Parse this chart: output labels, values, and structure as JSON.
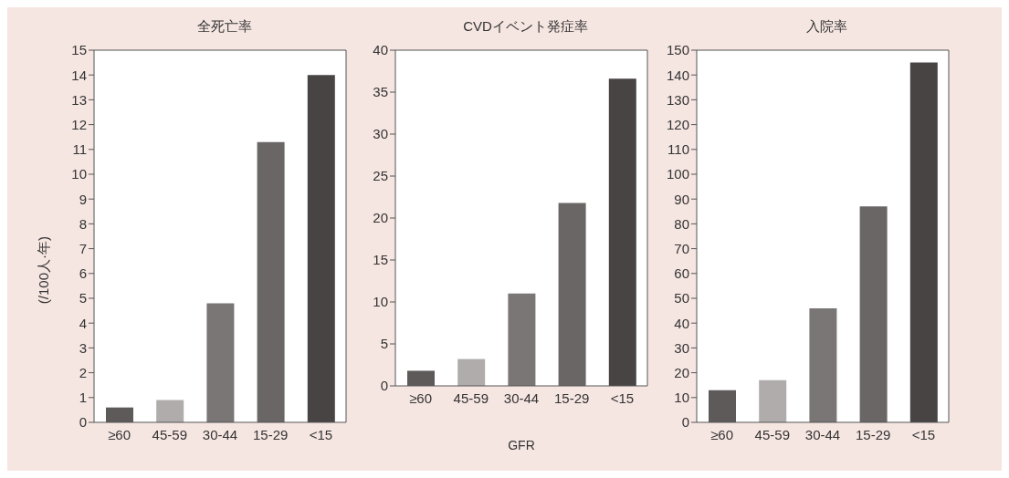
{
  "chart_data": [
    {
      "type": "bar",
      "title": "全死亡率",
      "ylabel": "(/100人·年)",
      "categories": [
        "≥60",
        "45-59",
        "30-44",
        "15-29",
        "<15"
      ],
      "values": [
        0.6,
        0.9,
        4.8,
        11.3,
        14.0
      ],
      "colors": [
        "#5e5a5a",
        "#b0acac",
        "#7a7676",
        "#6a6666",
        "#484444"
      ],
      "ylim": [
        0,
        15
      ],
      "yticks": [
        0,
        1,
        2,
        3,
        4,
        5,
        6,
        7,
        8,
        9,
        10,
        11,
        12,
        13,
        14,
        15
      ],
      "grid": false
    },
    {
      "type": "bar",
      "title": "CVDイベント発症率",
      "xlabel": "GFR",
      "categories": [
        "≥60",
        "45-59",
        "30-44",
        "15-29",
        "<15"
      ],
      "values": [
        1.8,
        3.2,
        11.0,
        21.8,
        36.6
      ],
      "colors": [
        "#5e5a5a",
        "#b0acac",
        "#7a7676",
        "#6a6666",
        "#484444"
      ],
      "ylim": [
        0,
        40
      ],
      "yticks": [
        0,
        5,
        10,
        15,
        20,
        25,
        30,
        35,
        40
      ],
      "grid": false
    },
    {
      "type": "bar",
      "title": "入院率",
      "categories": [
        "≥60",
        "45-59",
        "30-44",
        "15-29",
        "<15"
      ],
      "values": [
        13,
        17,
        46,
        87,
        145
      ],
      "colors": [
        "#5e5a5a",
        "#b0acac",
        "#7a7676",
        "#6a6666",
        "#484444"
      ],
      "ylim": [
        0,
        150
      ],
      "yticks": [
        0,
        10,
        20,
        30,
        40,
        50,
        60,
        70,
        80,
        90,
        100,
        110,
        120,
        130,
        140,
        150
      ],
      "grid": false
    }
  ]
}
